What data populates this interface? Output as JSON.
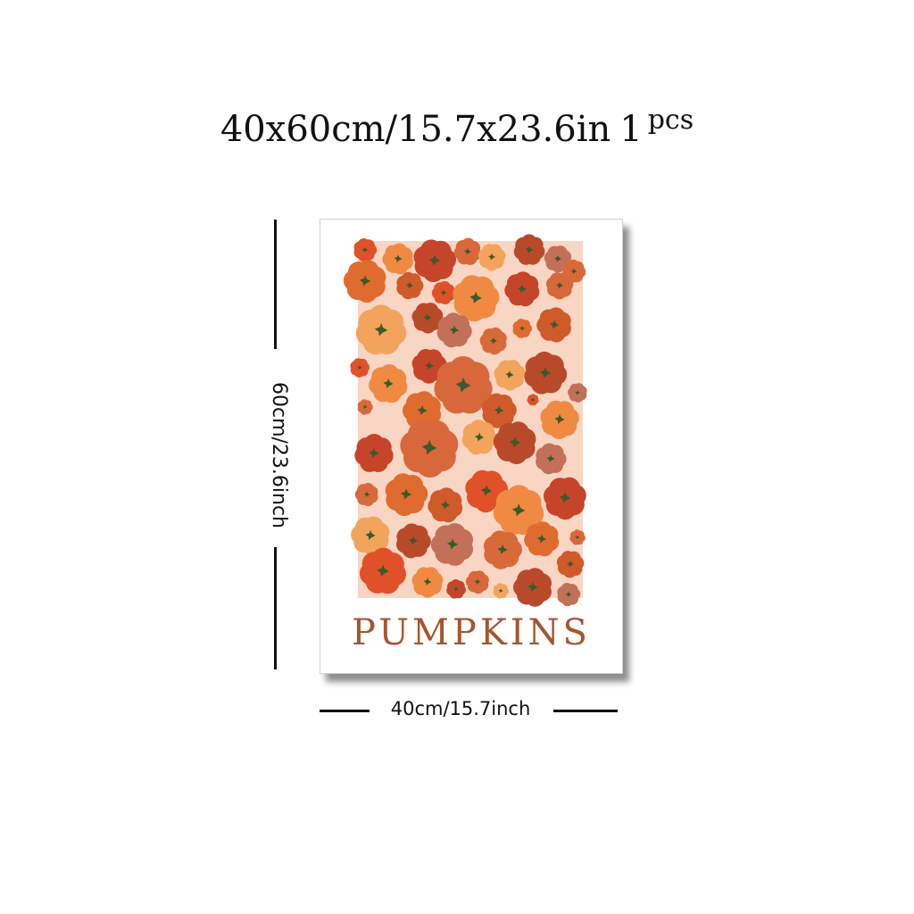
{
  "heading": {
    "size": "40x60cm/15.7x23.6in",
    "quantity": "1",
    "unit": "pcs"
  },
  "poster": {
    "title": "PUMPKINS",
    "title_color": "#a5562f",
    "background_color": "#f9d5c3",
    "pumpkin_colors": [
      "#e0512a",
      "#f08a42",
      "#c6442a",
      "#d9673c",
      "#f2a45c",
      "#b84a2a",
      "#c27058",
      "#d86a3a",
      "#e06b2e",
      "#cf5a2a"
    ],
    "stem_color": "#3a5a2a"
  },
  "dimensions": {
    "height_label": "60cm/23.6inch",
    "width_label": "40cm/15.7inch"
  }
}
